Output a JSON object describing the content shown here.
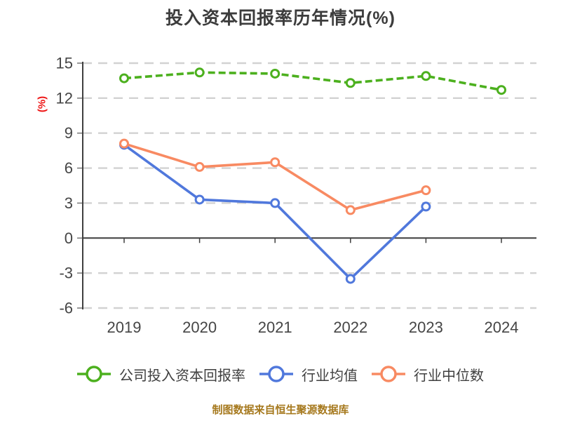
{
  "title": "投入资本回报率历年情况(%)",
  "y_axis_label": "(%)",
  "footer": "制图数据来自恒生聚源数据库",
  "colors": {
    "company": "#4cb01e",
    "industry_mean": "#5078dc",
    "industry_median": "#f88a62",
    "axis": "#3f3f3f",
    "grid": "#d2d2d2",
    "tick_text": "#454545",
    "title_text": "#3c3c3c",
    "y_label_text": "#ee1515",
    "footer_text": "#a6791e",
    "marker_fill": "#ffffff"
  },
  "chart_data": {
    "type": "line",
    "title": "投入资本回报率历年情况(%)",
    "ylabel": "(%)",
    "xlabel": "",
    "x": [
      "2019",
      "2020",
      "2021",
      "2022",
      "2023",
      "2024"
    ],
    "yticks": [
      15,
      12,
      9,
      6,
      3,
      0,
      -3,
      -6
    ],
    "ylim": [
      -6,
      15
    ],
    "grid": "horizontal-dashed",
    "legend_position": "bottom",
    "series": [
      {
        "name": "公司投入资本回报率",
        "color_key": "company",
        "line_style": "dashed",
        "values": [
          13.7,
          14.2,
          14.1,
          13.3,
          13.9,
          12.7
        ]
      },
      {
        "name": "行业均值",
        "color_key": "industry_mean",
        "line_style": "solid",
        "values": [
          8.0,
          3.3,
          3.0,
          -3.5,
          2.7,
          null
        ]
      },
      {
        "name": "行业中位数",
        "color_key": "industry_median",
        "line_style": "solid",
        "values": [
          8.1,
          6.1,
          6.5,
          2.4,
          4.1,
          null
        ]
      }
    ]
  },
  "legend": {
    "items": [
      {
        "label": "公司投入资本回报率"
      },
      {
        "label": "行业均值"
      },
      {
        "label": "行业中位数"
      }
    ]
  }
}
